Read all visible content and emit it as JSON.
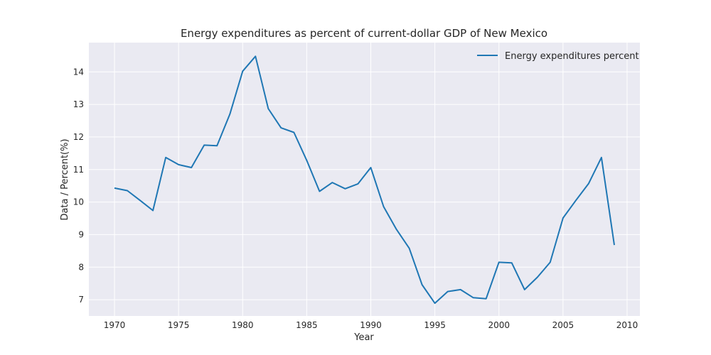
{
  "chart_data": {
    "type": "line",
    "title": "Energy expenditures as percent of current-dollar GDP of New Mexico",
    "xlabel": "Year",
    "ylabel": "Data / Percent(%)",
    "xlim": [
      1968,
      2011
    ],
    "ylim": [
      6.5,
      14.9
    ],
    "xticks": [
      1970,
      1975,
      1980,
      1985,
      1990,
      1995,
      2000,
      2005,
      2010
    ],
    "yticks": [
      7,
      8,
      9,
      10,
      11,
      12,
      13,
      14
    ],
    "grid": true,
    "legend_position": "top-right",
    "series": [
      {
        "name": "Energy expenditures percent",
        "color": "#1f77b4",
        "x": [
          1970,
          1971,
          1972,
          1973,
          1974,
          1975,
          1976,
          1977,
          1978,
          1979,
          1980,
          1981,
          1982,
          1983,
          1984,
          1985,
          1986,
          1987,
          1988,
          1989,
          1990,
          1991,
          1992,
          1993,
          1994,
          1995,
          1996,
          1997,
          1998,
          1999,
          2000,
          2001,
          2002,
          2003,
          2004,
          2005,
          2006,
          2007,
          2008,
          2009
        ],
        "y": [
          10.43,
          10.35,
          10.05,
          9.74,
          11.37,
          11.15,
          11.06,
          11.75,
          11.73,
          12.7,
          14.02,
          14.48,
          12.87,
          12.28,
          12.14,
          11.28,
          10.33,
          10.6,
          10.41,
          10.56,
          11.06,
          9.86,
          9.16,
          8.58,
          7.46,
          6.89,
          7.25,
          7.31,
          7.06,
          7.03,
          8.15,
          8.13,
          7.31,
          7.69,
          8.15,
          9.51,
          10.05,
          10.57,
          11.37,
          8.68
        ]
      }
    ]
  }
}
